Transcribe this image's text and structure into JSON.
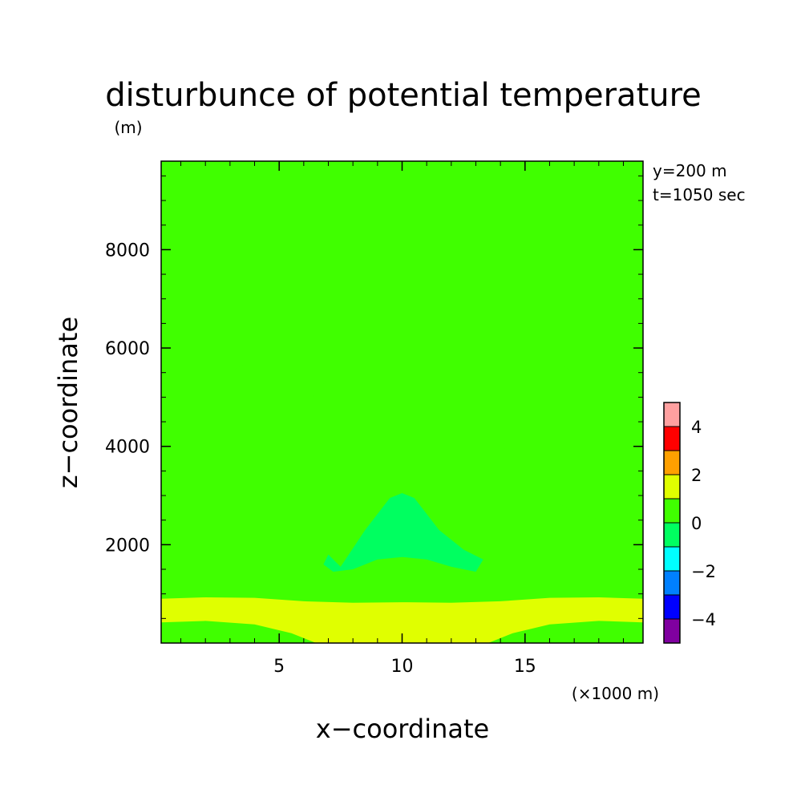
{
  "chart_data": {
    "type": "heatmap",
    "title": "disturbunce of potential temperature",
    "unit": "(m)",
    "xlabel": "x−coordinate",
    "ylabel": "z−coordinate",
    "x_unit_note": "(×1000 m)",
    "info": [
      "y=200 m",
      "t=1050 sec"
    ],
    "xlim": [
      0.2,
      19.8
    ],
    "ylim": [
      0,
      9800
    ],
    "xticks": [
      5,
      10,
      15
    ],
    "xtick_labels": [
      "5",
      "10",
      "15"
    ],
    "yticks": [
      2000,
      4000,
      6000,
      8000
    ],
    "ytick_labels": [
      "2000",
      "4000",
      "6000",
      "8000"
    ],
    "colorbar": {
      "levels": [
        -5,
        -4,
        -3,
        -2,
        -1,
        0,
        1,
        2,
        3,
        4,
        5
      ],
      "tick_values": [
        -4,
        -2,
        0,
        2,
        4
      ],
      "tick_labels": [
        "−4",
        "−2",
        "0",
        "2",
        "4"
      ],
      "colors": [
        "#8000a0",
        "#0000ff",
        "#0080ff",
        "#00ffff",
        "#00ff60",
        "#40ff00",
        "#e0ff00",
        "#ffa000",
        "#ff0000",
        "#ffa0a0"
      ]
    },
    "background_level": "0 to 1",
    "regions": [
      {
        "range": "0 to 1",
        "color": "#40ff00",
        "path": [
          [
            0.2,
            5500
          ],
          [
            1.2,
            5450
          ],
          [
            2,
            5420
          ],
          [
            3,
            5500
          ],
          [
            4,
            5800
          ],
          [
            4.8,
            6500
          ],
          [
            5.0,
            7500
          ],
          [
            5.05,
            9000
          ],
          [
            4.9,
            9800
          ],
          [
            0.2,
            9800
          ]
        ]
      },
      {
        "range": "0 to 1",
        "color": "#40ff00",
        "path": [
          [
            19.8,
            5500
          ],
          [
            18.8,
            5450
          ],
          [
            18,
            5420
          ],
          [
            17,
            5500
          ],
          [
            16,
            5800
          ],
          [
            15.2,
            6500
          ],
          [
            15.0,
            7500
          ],
          [
            14.95,
            9000
          ],
          [
            15.1,
            9800
          ],
          [
            19.8,
            9800
          ]
        ]
      },
      {
        "range": "0 to 1",
        "color": "#40ff00",
        "path": [
          [
            0.2,
            2500
          ],
          [
            1.5,
            2450
          ],
          [
            3,
            2650
          ],
          [
            4.5,
            3100
          ],
          [
            5.5,
            3500
          ],
          [
            6.0,
            4200
          ],
          [
            6.2,
            4900
          ],
          [
            7.0,
            5400
          ],
          [
            8.5,
            5600
          ],
          [
            10,
            5650
          ],
          [
            11.5,
            5600
          ],
          [
            13.0,
            5400
          ],
          [
            13.8,
            4900
          ],
          [
            14.0,
            4200
          ],
          [
            14.5,
            3500
          ],
          [
            15.5,
            3100
          ],
          [
            17,
            2650
          ],
          [
            18.5,
            2450
          ],
          [
            19.8,
            2500
          ],
          [
            19.8,
            800
          ],
          [
            0.2,
            800
          ]
        ]
      },
      {
        "range": "-1 to 0",
        "color": "#00ff60",
        "path": [
          [
            7.5,
            1550
          ],
          [
            8.5,
            2300
          ],
          [
            9.5,
            2950
          ],
          [
            10,
            3050
          ],
          [
            10.5,
            2950
          ],
          [
            11.5,
            2300
          ],
          [
            12.5,
            1900
          ],
          [
            13.3,
            1700
          ],
          [
            13.0,
            1450
          ],
          [
            12.0,
            1550
          ],
          [
            11,
            1700
          ],
          [
            10,
            1750
          ],
          [
            9,
            1700
          ],
          [
            8,
            1500
          ],
          [
            7.2,
            1450
          ],
          [
            6.8,
            1600
          ],
          [
            7.0,
            1800
          ]
        ]
      },
      {
        "range": "1 to 2",
        "color": "#e0ff00",
        "path": [
          [
            0.2,
            900
          ],
          [
            2,
            930
          ],
          [
            4,
            920
          ],
          [
            6,
            850
          ],
          [
            8,
            820
          ],
          [
            10,
            830
          ],
          [
            12,
            820
          ],
          [
            14,
            850
          ],
          [
            16,
            920
          ],
          [
            18,
            930
          ],
          [
            19.8,
            900
          ],
          [
            19.8,
            420
          ],
          [
            18,
            450
          ],
          [
            16,
            380
          ],
          [
            14.5,
            200
          ],
          [
            13.5,
            0
          ],
          [
            6.5,
            0
          ],
          [
            5.5,
            200
          ],
          [
            4,
            380
          ],
          [
            2,
            450
          ],
          [
            0.2,
            420
          ]
        ]
      }
    ]
  }
}
